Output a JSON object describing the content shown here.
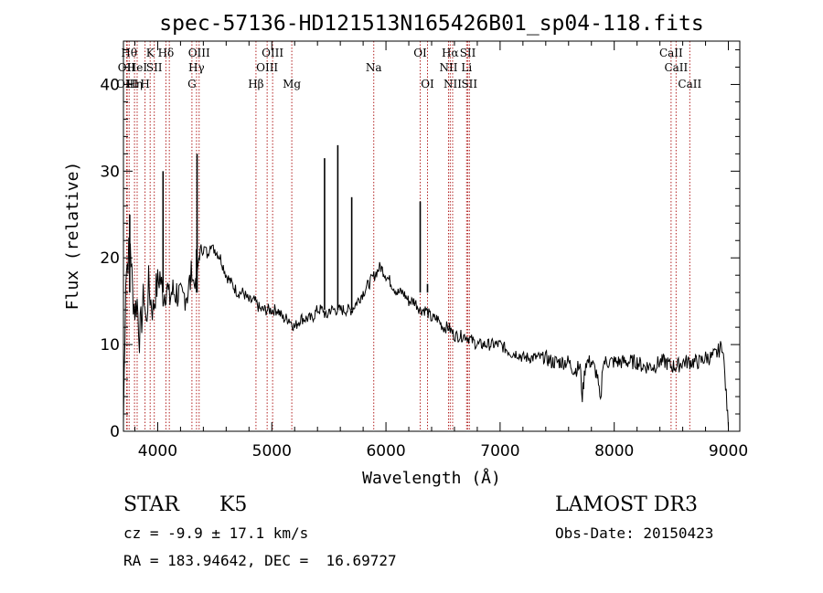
{
  "chart_data": {
    "type": "line",
    "title": "spec-57136-HD121513N165426B01_sp04-118.fits",
    "xlabel": "Wavelength (Å)",
    "ylabel": "Flux (relative)",
    "xlim": [
      3700,
      9100
    ],
    "ylim": [
      0,
      45
    ],
    "xticks": [
      4000,
      5000,
      6000,
      7000,
      8000,
      9000
    ],
    "yticks": [
      0,
      10,
      20,
      30,
      40
    ],
    "grid": false,
    "series": [
      {
        "name": "spectrum",
        "x": [
          3700,
          3720,
          3740,
          3760,
          3780,
          3800,
          3820,
          3840,
          3860,
          3880,
          3900,
          3920,
          3940,
          3960,
          3980,
          4000,
          4020,
          4040,
          4060,
          4080,
          4100,
          4120,
          4140,
          4160,
          4180,
          4200,
          4220,
          4240,
          4260,
          4280,
          4300,
          4320,
          4340,
          4360,
          4380,
          4400,
          4420,
          4440,
          4460,
          4480,
          4500,
          4550,
          4600,
          4650,
          4700,
          4750,
          4800,
          4850,
          4900,
          4950,
          5000,
          5050,
          5100,
          5150,
          5200,
          5250,
          5300,
          5350,
          5400,
          5450,
          5480,
          5500,
          5550,
          5600,
          5650,
          5700,
          5750,
          5800,
          5850,
          5900,
          5950,
          6000,
          6050,
          6100,
          6150,
          6200,
          6250,
          6300,
          6350,
          6400,
          6450,
          6500,
          6550,
          6600,
          6650,
          6700,
          6750,
          6800,
          6850,
          6900,
          6950,
          7000,
          7050,
          7100,
          7150,
          7200,
          7250,
          7300,
          7350,
          7400,
          7450,
          7500,
          7550,
          7600,
          7650,
          7700,
          7720,
          7750,
          7800,
          7850,
          7880,
          7900,
          7950,
          8000,
          8050,
          8100,
          8150,
          8200,
          8250,
          8300,
          8350,
          8400,
          8450,
          8500,
          8550,
          8600,
          8650,
          8700,
          8750,
          8800,
          8850,
          8900,
          8950,
          9000
        ],
        "y": [
          1,
          18,
          20,
          22,
          16,
          14,
          15,
          11,
          13,
          16,
          12,
          17,
          15,
          14,
          16,
          17,
          18,
          16,
          16,
          17,
          15,
          16,
          16,
          16,
          16,
          15,
          15,
          16,
          16,
          17,
          18,
          17,
          17,
          20,
          21,
          21,
          21,
          20,
          22,
          21,
          21,
          20,
          18,
          17,
          16,
          16,
          15,
          15,
          14,
          14,
          14,
          14,
          13,
          13,
          12,
          13,
          13,
          13,
          14,
          14,
          13,
          14,
          14,
          14,
          14,
          14,
          15,
          16,
          17,
          18,
          19,
          18,
          17,
          16,
          16,
          15,
          15,
          14,
          14,
          13,
          13,
          12,
          12,
          11,
          11,
          11,
          10.5,
          10,
          10,
          10,
          10,
          10,
          9.5,
          9,
          9,
          8.5,
          8.5,
          8.5,
          8.5,
          8.5,
          8,
          8,
          8,
          8,
          7,
          7.5,
          4,
          8,
          8,
          6.5,
          3,
          8,
          8,
          8,
          8,
          8,
          8,
          8,
          7.5,
          7.5,
          7.5,
          8,
          8,
          7.5,
          7.5,
          8,
          8,
          8,
          8,
          8.5,
          8.5,
          9,
          10,
          0.5
        ]
      }
    ],
    "emission_spikes": [
      {
        "x": 4340,
        "y": 21
      },
      {
        "x": 4345,
        "y": 32
      },
      {
        "x": 5462,
        "y": 31.5
      },
      {
        "x": 5578,
        "y": 33
      },
      {
        "x": 5700,
        "y": 27
      },
      {
        "x": 6300,
        "y": 26.5
      },
      {
        "x": 6364,
        "y": 17
      },
      {
        "x": 4047,
        "y": 30
      },
      {
        "x": 3755,
        "y": 25
      }
    ],
    "line_markers": [
      {
        "x": 3727,
        "label": "OII",
        "row": 2
      },
      {
        "x": 3733,
        "label": "OIII",
        "row": 3
      },
      {
        "x": 3750,
        "label": "Hθ",
        "row": 1
      },
      {
        "x": 3797,
        "label": "Hη",
        "row": 3
      },
      {
        "x": 3820,
        "label": "HeI",
        "row": 2
      },
      {
        "x": 3889,
        "label": "H",
        "row": 3
      },
      {
        "x": 3934,
        "label": "K",
        "row": 1
      },
      {
        "x": 3970,
        "label": "SII",
        "row": 2
      },
      {
        "x": 4072,
        "label": "Hδ",
        "row": 1
      },
      {
        "x": 4102,
        "label": "",
        "row": 0
      },
      {
        "x": 4300,
        "label": "G",
        "row": 3
      },
      {
        "x": 4340,
        "label": "Hγ",
        "row": 2
      },
      {
        "x": 4363,
        "label": "OIII",
        "row": 1
      },
      {
        "x": 4861,
        "label": "Hβ",
        "row": 3
      },
      {
        "x": 4959,
        "label": "OIII",
        "row": 2
      },
      {
        "x": 5007,
        "label": "OIII",
        "row": 1
      },
      {
        "x": 5175,
        "label": "Mg",
        "row": 3
      },
      {
        "x": 5893,
        "label": "Na",
        "row": 2
      },
      {
        "x": 6300,
        "label": "OI",
        "row": 1
      },
      {
        "x": 6364,
        "label": "OI",
        "row": 3
      },
      {
        "x": 6548,
        "label": "NII",
        "row": 2
      },
      {
        "x": 6563,
        "label": "Hα",
        "row": 1
      },
      {
        "x": 6584,
        "label": "NII",
        "row": 3
      },
      {
        "x": 6707,
        "label": "Li",
        "row": 2
      },
      {
        "x": 6717,
        "label": "SII",
        "row": 1
      },
      {
        "x": 6731,
        "label": "SII",
        "row": 3
      },
      {
        "x": 8498,
        "label": "CaII",
        "row": 1
      },
      {
        "x": 8542,
        "label": "CaII",
        "row": 2
      },
      {
        "x": 8662,
        "label": "CaII",
        "row": 3
      }
    ]
  },
  "info": {
    "class_label": "STAR",
    "subclass_label": "K5",
    "cz_line": "cz = -9.9 ± 17.1 km/s",
    "radec_line": "RA = 183.94642, DEC =  16.69727",
    "survey_label": "LAMOST DR3",
    "obs_date_line": "Obs-Date: 20150423"
  },
  "colors": {
    "marker": "#b22222",
    "spectrum": "#000000",
    "axis": "#000000"
  }
}
